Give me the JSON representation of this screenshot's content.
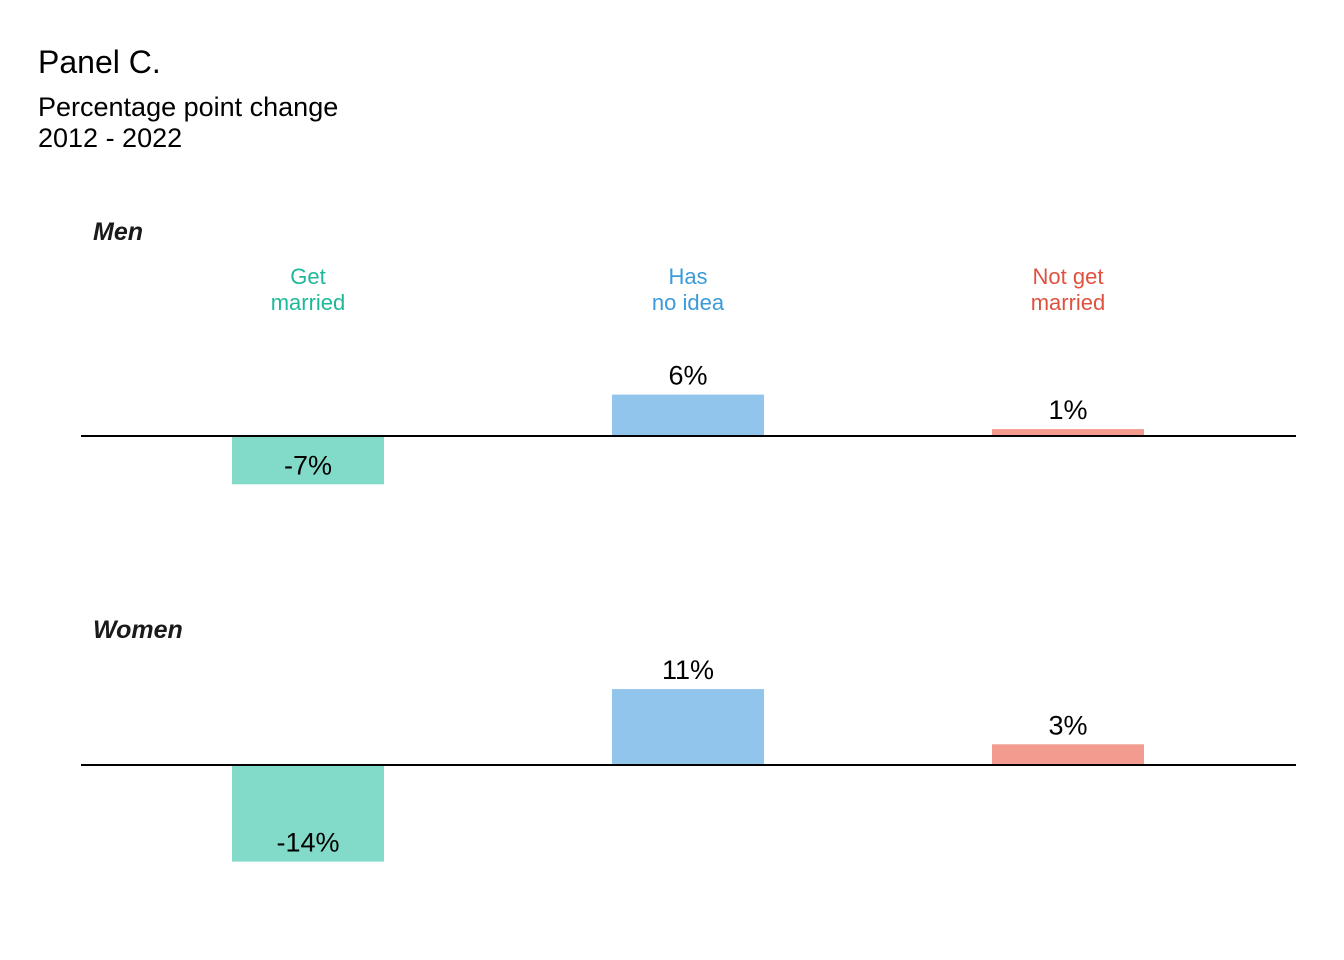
{
  "title": "Panel C.",
  "subtitle_lines": [
    "Percentage point change",
    "2012 - 2022"
  ],
  "chart_data": {
    "type": "bar",
    "categories": [
      "Get married",
      "Has no idea",
      "Not get married"
    ],
    "category_label_lines": [
      [
        "Get",
        "married"
      ],
      [
        "Has",
        "no idea"
      ],
      [
        "Not get",
        "married"
      ]
    ],
    "category_colors": [
      "#1fb89a",
      "#3b9ad9",
      "#e0523f"
    ],
    "bar_colors": [
      "#81dbc8",
      "#91c5ec",
      "#f39b8e"
    ],
    "series": [
      {
        "name": "Men",
        "values": [
          -7,
          6,
          1
        ],
        "labels": [
          "-7%",
          "6%",
          "1%"
        ]
      },
      {
        "name": "Women",
        "values": [
          -14,
          11,
          3
        ],
        "labels": [
          "-14%",
          "11%",
          "3%"
        ]
      }
    ],
    "unit": "%",
    "gridlines": false,
    "axis": "zero baseline only"
  }
}
